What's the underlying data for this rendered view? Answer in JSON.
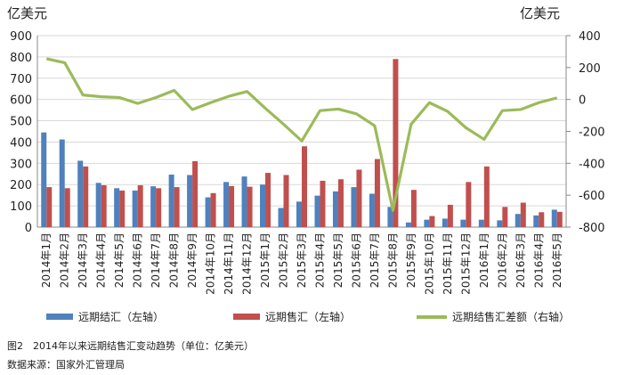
{
  "chart_data": {
    "type": "bar",
    "left_unit": "亿美元",
    "right_unit": "亿美元",
    "categories": [
      "2014年1月",
      "2014年2月",
      "2014年3月",
      "2014年4月",
      "2014年5月",
      "2014年6月",
      "2014年7月",
      "2014年8月",
      "2014年9月",
      "2014年10月",
      "2014年11月",
      "2014年12月",
      "2015年1月",
      "2015年2月",
      "2015年3月",
      "2015年4月",
      "2015年5月",
      "2015年6月",
      "2015年7月",
      "2015年8月",
      "2015年9月",
      "2015年10月",
      "2015年11月",
      "2015年12月",
      "2016年1月",
      "2016年2月",
      "2016年3月",
      "2016年4月",
      "2016年5月"
    ],
    "left_ticks": [
      "0",
      "100",
      "200",
      "300",
      "400",
      "500",
      "600",
      "700",
      "800",
      "900"
    ],
    "right_ticks": [
      "-800",
      "-600",
      "-400",
      "-200",
      "0",
      "200",
      "400"
    ],
    "ylim_left": [
      0,
      900
    ],
    "ylim_right": [
      -800,
      400
    ],
    "series": [
      {
        "name": "远期结汇（左轴）",
        "axis": "left",
        "kind": "bar",
        "color": "#4f81bd",
        "values": [
          445,
          412,
          312,
          208,
          183,
          172,
          192,
          247,
          245,
          140,
          212,
          238,
          200,
          90,
          120,
          148,
          168,
          188,
          157,
          95,
          22,
          35,
          40,
          35,
          35,
          32,
          62,
          55,
          82
        ]
      },
      {
        "name": "远期售汇（左轴）",
        "axis": "left",
        "kind": "bar",
        "color": "#c0504d",
        "values": [
          188,
          183,
          285,
          197,
          172,
          197,
          183,
          188,
          310,
          160,
          193,
          190,
          255,
          245,
          380,
          218,
          225,
          270,
          320,
          790,
          175,
          52,
          105,
          212,
          285,
          95,
          115,
          70,
          72
        ]
      },
      {
        "name": "远期结售汇差额（右轴）",
        "axis": "right",
        "kind": "line",
        "color": "#9bbb59",
        "values": [
          255,
          230,
          28,
          17,
          12,
          -25,
          12,
          57,
          -63,
          -20,
          20,
          50,
          -55,
          -155,
          -260,
          -70,
          -60,
          -90,
          -165,
          -695,
          -155,
          -20,
          -75,
          -177,
          -250,
          -70,
          -63,
          -20,
          10
        ]
      }
    ]
  },
  "caption": "图2　2014年以来远期结售汇变动趋势（单位：亿美元）",
  "source": "数据来源：国家外汇管理局"
}
